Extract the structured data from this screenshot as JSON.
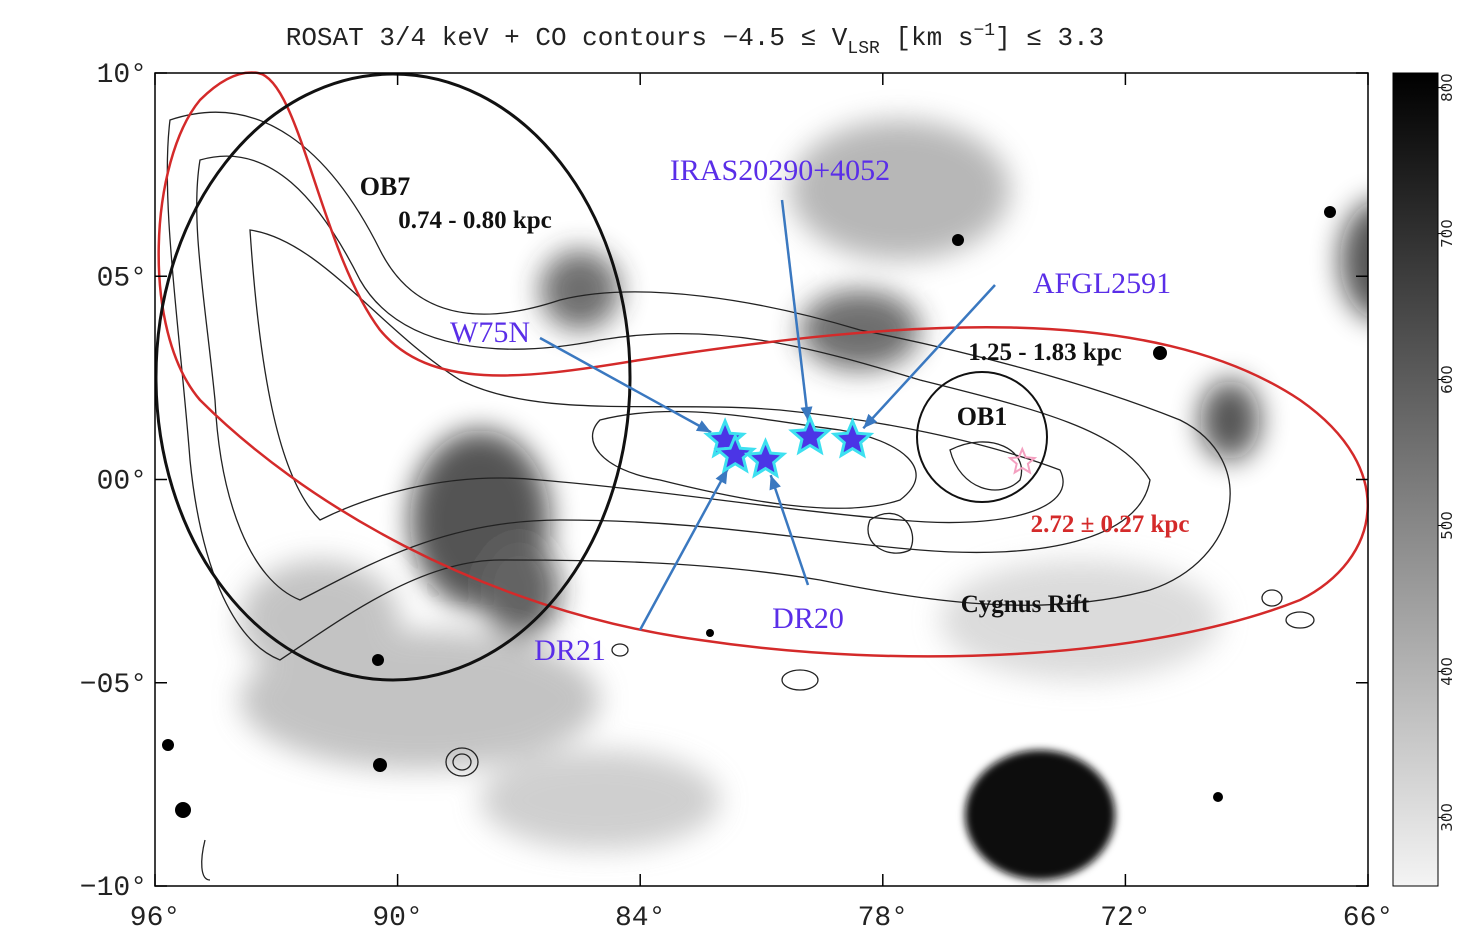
{
  "chart_data": {
    "type": "sky-map",
    "title_parts": [
      "ROSAT 3/4 keV + CO contours −4.5 ≤ V",
      "LSR",
      " [km s",
      "−1",
      "] ≤ 3.3"
    ],
    "xlim": [
      96,
      66
    ],
    "xticks": [
      {
        "value": 96,
        "label": "96°"
      },
      {
        "value": 90,
        "label": "90°"
      },
      {
        "value": 84,
        "label": "84°"
      },
      {
        "value": 78,
        "label": "78°"
      },
      {
        "value": 72,
        "label": "72°"
      },
      {
        "value": 66,
        "label": "66°"
      }
    ],
    "ylim": [
      -10,
      10
    ],
    "yticks": [
      {
        "value": 10,
        "label": "10°"
      },
      {
        "value": 5,
        "label": "05°"
      },
      {
        "value": 0,
        "label": "00°"
      },
      {
        "value": -5,
        "label": "−05°"
      },
      {
        "value": -10,
        "label": "−10°"
      }
    ],
    "colorbar": {
      "lim": [
        253,
        810
      ],
      "ticks": [
        300,
        400,
        500,
        600,
        700,
        800
      ]
    },
    "regions": [
      "OB7",
      "0.74 - 0.80 kpc",
      "1.25 - 1.83 kpc",
      "OB1",
      "2.72 ± 0.27 kpc",
      "Cygnus Rift"
    ],
    "points": {
      "labels": [
        "W75N",
        "DR21",
        "DR20",
        "IRAS20290+4052",
        "AFGL2591",
        null
      ],
      "x": [
        81.9,
        81.65,
        80.9,
        79.8,
        78.75,
        74.55
      ],
      "y": [
        0.97,
        0.6,
        0.48,
        1.05,
        0.97,
        0.43
      ],
      "colors": [
        "#4b35e6",
        "#4b35e6",
        "#4b35e6",
        "#4b35e6",
        "#4b35e6",
        "#f4a0c0"
      ]
    }
  }
}
